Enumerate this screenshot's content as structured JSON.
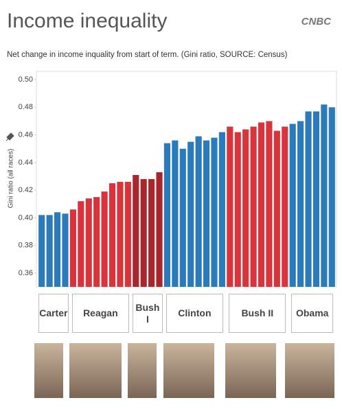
{
  "header": {
    "title": "Income inequality",
    "brand": "CNBC"
  },
  "chart_data": {
    "type": "bar",
    "subtitle": "Net change in income inquality from start of term. (Gini ratio, SOURCE: Census)",
    "y_label": "Gini ratio (all races)",
    "ylim": [
      0.35,
      0.506
    ],
    "yticks": [
      0.36,
      0.38,
      {
        "value": 0.4,
        "label": "0.40"
      },
      0.42,
      0.44,
      0.46,
      0.48,
      {
        "value": 0.5,
        "label": "0.50"
      }
    ],
    "grid": false,
    "series": [
      {
        "name": "Carter",
        "color": "#2b7bba",
        "values": [
          0.402,
          0.402,
          0.404,
          0.403
        ]
      },
      {
        "name": "Reagan",
        "color": "#d9343b",
        "values": [
          0.406,
          0.412,
          0.414,
          0.415,
          0.419,
          0.425,
          0.426,
          0.426
        ]
      },
      {
        "name": "Bush I",
        "color": "#a9262c",
        "values": [
          0.431,
          0.428,
          0.428,
          0.433
        ]
      },
      {
        "name": "Clinton",
        "color": "#2b7bba",
        "values": [
          0.454,
          0.456,
          0.45,
          0.455,
          0.459,
          0.456,
          0.458,
          0.462
        ]
      },
      {
        "name": "Bush II",
        "color": "#d9343b",
        "values": [
          0.466,
          0.462,
          0.464,
          0.466,
          0.469,
          0.47,
          0.463,
          0.466
        ]
      },
      {
        "name": "Obama",
        "color": "#2b7bba",
        "values": [
          0.468,
          0.47,
          0.477,
          0.477,
          0.482,
          0.48
        ]
      }
    ]
  }
}
